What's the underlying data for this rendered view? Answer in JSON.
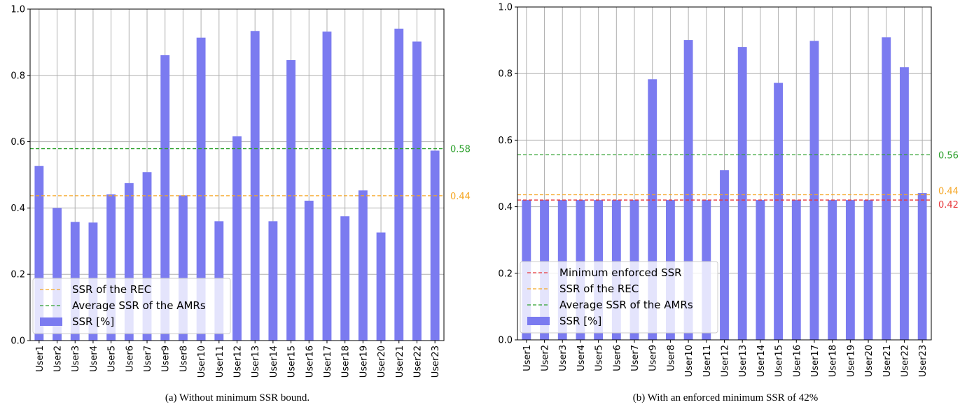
{
  "chart_data": [
    {
      "type": "bar",
      "caption": "(a) Without minimum SSR bound.",
      "categories": [
        "User1",
        "User2",
        "User3",
        "User4",
        "User5",
        "User6",
        "User7",
        "User9",
        "User8",
        "User10",
        "User11",
        "User12",
        "User13",
        "User14",
        "User15",
        "User16",
        "User17",
        "User18",
        "User19",
        "User20",
        "User21",
        "User22",
        "User23"
      ],
      "series": [
        {
          "name": "SSR [%]",
          "color": "#7b7bf0",
          "values": [
            0.527,
            0.4,
            0.358,
            0.356,
            0.441,
            0.475,
            0.508,
            0.861,
            0.438,
            0.914,
            0.36,
            0.616,
            0.934,
            0.36,
            0.846,
            0.422,
            0.932,
            0.375,
            0.453,
            0.326,
            0.941,
            0.902,
            0.573
          ]
        }
      ],
      "reference_lines": [
        {
          "name": "SSR of the REC",
          "value": 0.437,
          "label": "0.44",
          "color": "#f5a623"
        },
        {
          "name": "Average SSR of the AMRs",
          "value": 0.579,
          "label": "0.58",
          "color": "#2ca02c"
        }
      ],
      "yticks": [
        "0.0",
        "0.2",
        "0.4",
        "0.6",
        "0.8",
        "1.0"
      ],
      "ylim": [
        0,
        1.0
      ],
      "grid": true,
      "legend_position": "lower-left"
    },
    {
      "type": "bar",
      "caption": "(b) With an enforced minimum SSR of 42%",
      "categories": [
        "User1",
        "User2",
        "User3",
        "User4",
        "User5",
        "User6",
        "User7",
        "User9",
        "User8",
        "User10",
        "User11",
        "User12",
        "User13",
        "User14",
        "User15",
        "User16",
        "User17",
        "User18",
        "User19",
        "User20",
        "User21",
        "User22",
        "User23"
      ],
      "series": [
        {
          "name": "SSR [%]",
          "color": "#7b7bf0",
          "values": [
            0.42,
            0.42,
            0.42,
            0.42,
            0.42,
            0.42,
            0.42,
            0.783,
            0.42,
            0.901,
            0.42,
            0.51,
            0.88,
            0.42,
            0.772,
            0.42,
            0.898,
            0.42,
            0.42,
            0.42,
            0.909,
            0.819,
            0.441
          ]
        }
      ],
      "reference_lines": [
        {
          "name": "Minimum enforced SSR",
          "value": 0.42,
          "label": "0.42",
          "color": "#e8383b"
        },
        {
          "name": "SSR of the REC",
          "value": 0.436,
          "label": "0.44",
          "color": "#f5a623"
        },
        {
          "name": "Average SSR of the AMRs",
          "value": 0.556,
          "label": "0.56",
          "color": "#2ca02c"
        }
      ],
      "yticks": [
        "0.0",
        "0.2",
        "0.4",
        "0.6",
        "0.8",
        "1.0"
      ],
      "ylim": [
        0,
        1.0
      ],
      "grid": true,
      "legend_position": "lower-left"
    }
  ]
}
